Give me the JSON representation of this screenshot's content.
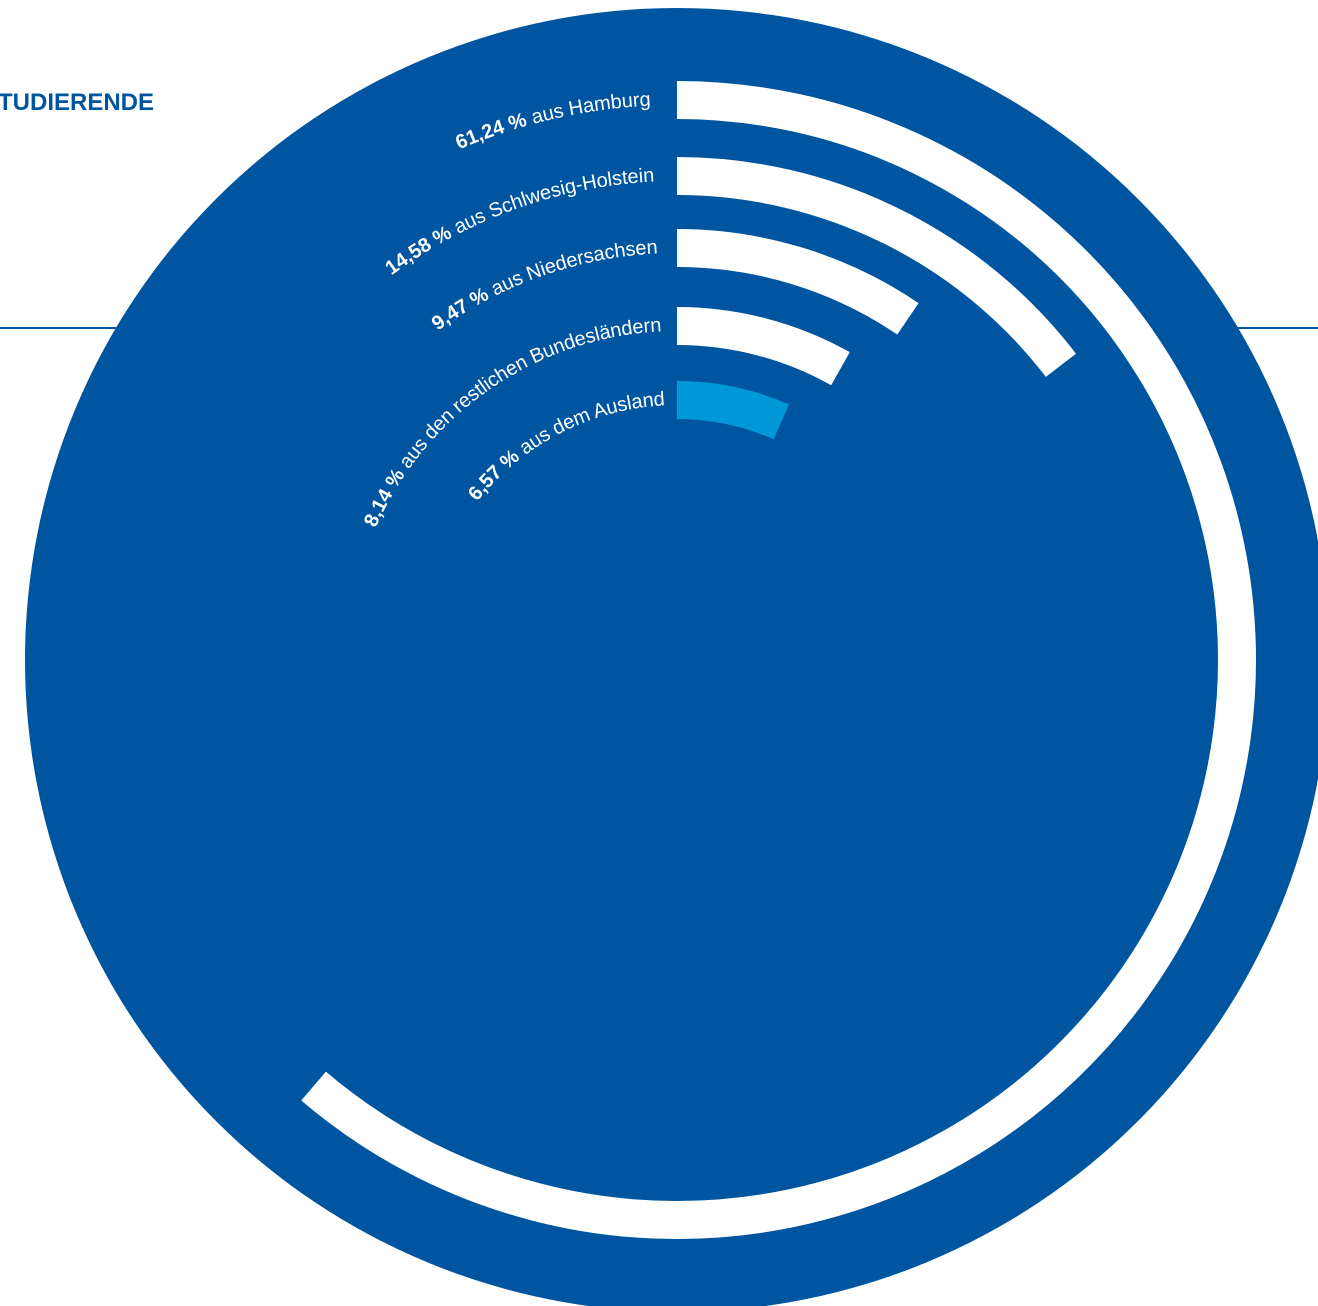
{
  "chart_data": {
    "type": "radial-bar",
    "title": "TUDIERENDE",
    "categories": [
      "aus Hamburg",
      "aus Schlwesig-Holstein",
      "aus Niedersachsen",
      "aus den restlichen Bundesländern",
      "aus dem Ausland"
    ],
    "values": [
      61.24,
      14.58,
      9.47,
      8.14,
      6.57
    ],
    "value_labels": [
      "61,24 %",
      "14,58 %",
      "9,47 %",
      "8,14 %",
      "6,57 %"
    ],
    "colors": [
      "#ffffff",
      "#ffffff",
      "#ffffff",
      "#ffffff",
      "#0099d8"
    ],
    "background_color": "#0055a0",
    "ylim": [
      0,
      100
    ]
  }
}
